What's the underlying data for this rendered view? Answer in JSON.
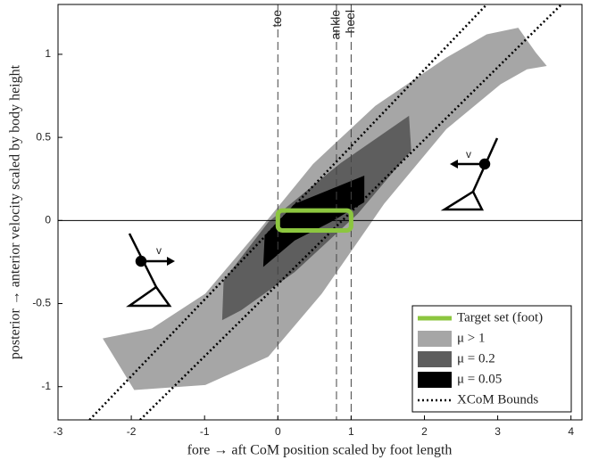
{
  "chart_data": {
    "type": "region",
    "x_label": "fore → aft CoM position scaled by foot length",
    "y_label": "posterior → anterior velocity scaled by body height",
    "xlim": [
      -3,
      4.15
    ],
    "ylim": [
      -1.2,
      1.3
    ],
    "xticks": [
      -3,
      -2,
      -1,
      0,
      1,
      2,
      3,
      4
    ],
    "yticks": [
      -1,
      -0.5,
      0,
      0.5,
      1
    ],
    "series": [
      {
        "name": "μ > 1",
        "color": "#a6a6a6",
        "x": [
          -2.39,
          -1.72,
          -0.99,
          -0.26,
          0.48,
          1.33,
          2.3,
          2.85,
          3.28,
          3.52,
          3.67,
          3.4,
          3.04,
          2.3,
          1.45,
          0.6,
          -0.13,
          -0.99,
          -1.96
        ],
        "y": [
          -0.71,
          -0.65,
          -0.44,
          -0.06,
          0.34,
          0.69,
          0.98,
          1.12,
          1.16,
          1.01,
          0.93,
          0.91,
          0.82,
          0.55,
          0.1,
          -0.44,
          -0.82,
          -0.99,
          -1.02
        ]
      },
      {
        "name": "μ = 0.2",
        "color": "#5e5e5e",
        "x": [
          -0.76,
          -0.74,
          -0.13,
          0.84,
          1.79,
          1.82,
          1.09,
          0.23,
          -0.5
        ],
        "y": [
          -0.6,
          -0.36,
          -0.01,
          0.34,
          0.63,
          0.42,
          0.04,
          -0.31,
          -0.54
        ]
      },
      {
        "name": "μ = 0.05",
        "color": "#000000",
        "x": [
          -0.2,
          -0.18,
          0.23,
          1.18,
          1.18,
          0.72,
          0.23
        ],
        "y": [
          -0.28,
          -0.09,
          0.1,
          0.27,
          0.11,
          -0.01,
          -0.12
        ]
      }
    ],
    "target_set": {
      "name": "Target set (foot)",
      "color": "#8cc63f",
      "x": [
        0,
        1
      ],
      "y": [
        -0.06,
        0.06
      ]
    },
    "xcom_bounds": {
      "name": "XCoM Bounds",
      "color": "#000000",
      "lines": [
        {
          "x": [
            -2.57,
            2.85
          ],
          "y": [
            -1.2,
            1.3
          ]
        },
        {
          "x": [
            -1.88,
            3.87
          ],
          "y": [
            -1.2,
            1.3
          ]
        }
      ]
    },
    "reference_lines": [
      {
        "label": "toe",
        "x": 0
      },
      {
        "label": "ankle",
        "x": 0.8
      },
      {
        "label": "heel",
        "x": 1
      }
    ],
    "annotations": [
      "v",
      "v"
    ]
  }
}
